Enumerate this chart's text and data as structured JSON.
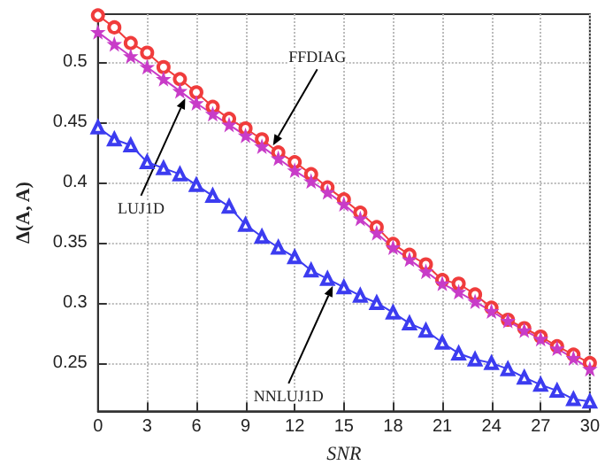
{
  "chart_data": {
    "type": "line",
    "xlabel": "SNR",
    "ylabel": "Δ(A, A)",
    "x": [
      0,
      1,
      2,
      3,
      4,
      5,
      6,
      7,
      8,
      9,
      10,
      11,
      12,
      13,
      14,
      15,
      16,
      17,
      18,
      19,
      20,
      21,
      22,
      23,
      24,
      25,
      26,
      27,
      28,
      29,
      30
    ],
    "series": [
      {
        "name": "FFDIAG",
        "color": "#f03c3c",
        "marker": "circle",
        "values": [
          0.539,
          0.529,
          0.516,
          0.508,
          0.496,
          0.486,
          0.475,
          0.463,
          0.453,
          0.445,
          0.436,
          0.425,
          0.417,
          0.407,
          0.396,
          0.386,
          0.375,
          0.363,
          0.349,
          0.34,
          0.332,
          0.319,
          0.316,
          0.307,
          0.296,
          0.286,
          0.279,
          0.272,
          0.264,
          0.257,
          0.25
        ]
      },
      {
        "name": "LUJ1D",
        "color": "#c83cc8",
        "marker": "star",
        "values": [
          0.525,
          0.515,
          0.505,
          0.496,
          0.486,
          0.476,
          0.466,
          0.457,
          0.448,
          0.439,
          0.43,
          0.42,
          0.41,
          0.401,
          0.392,
          0.382,
          0.37,
          0.358,
          0.346,
          0.336,
          0.326,
          0.316,
          0.309,
          0.301,
          0.293,
          0.285,
          0.277,
          0.27,
          0.262,
          0.254,
          0.245
        ]
      },
      {
        "name": "NNLUJ1D",
        "color": "#3c3cf0",
        "marker": "triangle",
        "values": [
          0.446,
          0.436,
          0.431,
          0.417,
          0.412,
          0.407,
          0.398,
          0.389,
          0.38,
          0.365,
          0.355,
          0.346,
          0.338,
          0.327,
          0.32,
          0.313,
          0.306,
          0.3,
          0.292,
          0.283,
          0.277,
          0.267,
          0.258,
          0.253,
          0.25,
          0.245,
          0.238,
          0.232,
          0.227,
          0.22,
          0.218
        ]
      }
    ],
    "xlim": [
      0,
      30
    ],
    "xticks": [
      0,
      3,
      6,
      9,
      12,
      15,
      18,
      21,
      24,
      27,
      30
    ],
    "ylim": [
      0.21,
      0.54
    ],
    "yticks": [
      0.25,
      0.3,
      0.35,
      0.4,
      0.45,
      0.5
    ],
    "grid": true,
    "legend": false,
    "line_style": "solid"
  }
}
